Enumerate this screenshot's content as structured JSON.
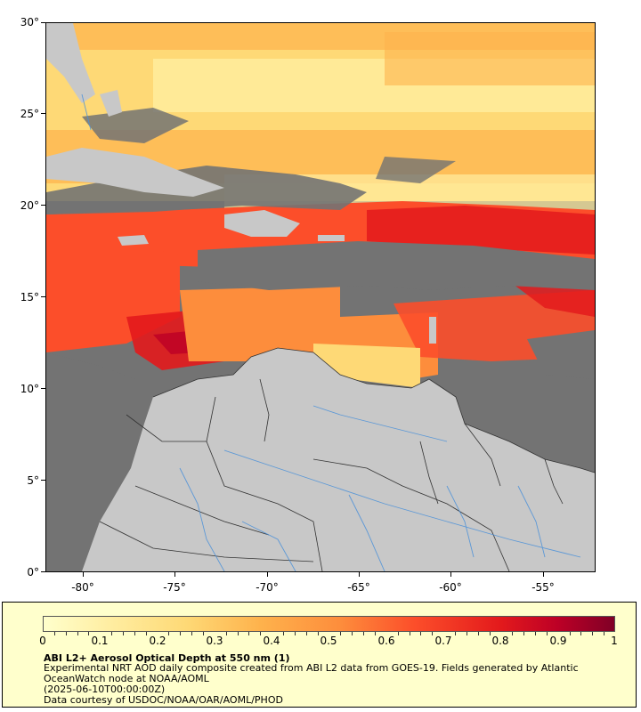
{
  "map": {
    "y_ticks": [
      "0°",
      "5°",
      "10°",
      "15°",
      "20°",
      "25°",
      "30°"
    ],
    "x_ticks": [
      "-80°",
      "-75°",
      "-70°",
      "-65°",
      "-60°",
      "-55°"
    ],
    "lon_range": [
      -82,
      -51
    ],
    "lat_range": [
      0,
      30
    ],
    "colors": {
      "no_data": "#737373",
      "land": "#c8c8c8",
      "rivers": "#4a90d9",
      "borders": "#333333"
    }
  },
  "colorbar": {
    "ticks": [
      "0",
      "0.1",
      "0.2",
      "0.3",
      "0.4",
      "0.5",
      "0.6",
      "0.7",
      "0.8",
      "0.9",
      "1"
    ],
    "range": [
      0,
      1
    ],
    "colors": [
      "#ffffcc",
      "#ffeda0",
      "#fed976",
      "#feb24c",
      "#fd8d3c",
      "#fc4e2a",
      "#e31a1c",
      "#bd0026",
      "#800026"
    ]
  },
  "caption": {
    "title": "ABI L2+ Aerosol Optical Depth at 550 nm (1)",
    "description": "Experimental NRT AOD daily composite created from ABI L2 data from GOES-19. Fields generated by Atlantic OceanWatch node at NOAA/AOML",
    "date": "(2025-06-10T00:00:00Z)",
    "credit": "Data courtesy of USDOC/NOAA/OAR/AOML/PHOD"
  }
}
